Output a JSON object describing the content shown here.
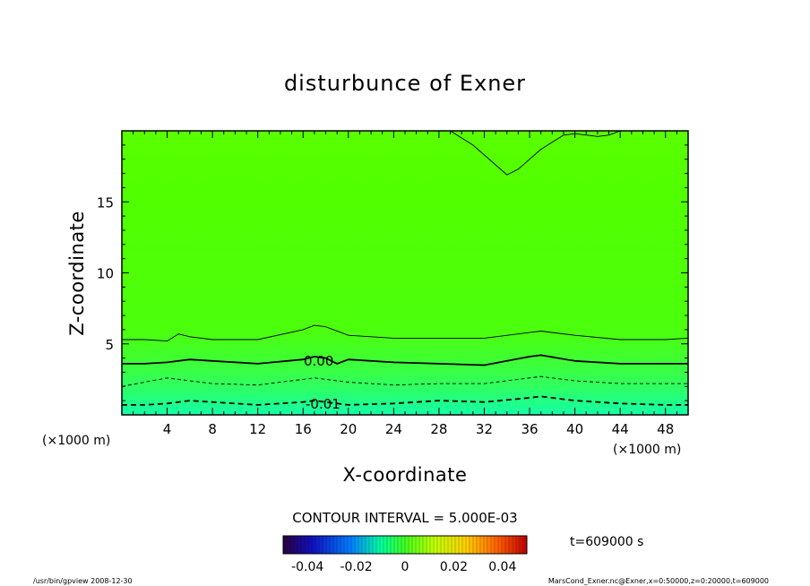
{
  "chart_data": {
    "type": "heatmap",
    "title": "disturbunce of Exner",
    "xlabel": "X-coordinate",
    "ylabel": "Z-coordinate",
    "x_unit": "(×1000 m)",
    "x_unit_right": "(×1000 m)",
    "xlim": [
      0,
      50
    ],
    "ylim": [
      0,
      20
    ],
    "x_ticks": [
      "4",
      "8",
      "12",
      "16",
      "20",
      "24",
      "28",
      "32",
      "36",
      "40",
      "44",
      "48"
    ],
    "y_ticks": [
      "5",
      "10",
      "15"
    ],
    "contour_labels": [
      "0.00",
      "-0.01"
    ],
    "contour_interval_text": "CONTOUR INTERVAL = 5.000E-03",
    "colorbar_ticks": [
      "-0.04",
      "-0.02",
      "0",
      "0.02",
      "0.04"
    ],
    "time_text": "t=609000 s",
    "contours": [
      {
        "level": 0.005,
        "style": "thin-solid",
        "x": [
          0,
          2,
          4,
          5,
          6,
          8,
          12,
          16,
          17,
          18,
          20,
          24,
          28,
          32,
          36,
          37,
          40,
          44,
          48,
          50
        ],
        "y": [
          5.3,
          5.3,
          5.2,
          5.7,
          5.5,
          5.3,
          5.3,
          6.0,
          6.3,
          6.2,
          5.6,
          5.4,
          5.4,
          5.4,
          5.8,
          5.9,
          5.6,
          5.3,
          5.3,
          5.4
        ]
      },
      {
        "level": 0.0,
        "style": "bold-solid",
        "x": [
          0,
          2,
          4,
          6,
          8,
          12,
          16,
          17,
          18,
          19,
          20,
          24,
          28,
          32,
          36,
          37,
          40,
          44,
          48,
          50
        ],
        "y": [
          3.6,
          3.6,
          3.7,
          3.9,
          3.8,
          3.6,
          3.9,
          4.1,
          4.0,
          3.6,
          3.9,
          3.7,
          3.6,
          3.5,
          4.1,
          4.2,
          3.8,
          3.6,
          3.6,
          3.6
        ]
      },
      {
        "level": -0.005,
        "style": "thin-dashed",
        "x": [
          0,
          2,
          4,
          6,
          8,
          12,
          16,
          17,
          18,
          20,
          24,
          28,
          32,
          36,
          37,
          40,
          44,
          48,
          50
        ],
        "y": [
          2.0,
          2.3,
          2.6,
          2.4,
          2.2,
          2.1,
          2.5,
          2.6,
          2.5,
          2.3,
          2.1,
          2.2,
          2.2,
          2.6,
          2.7,
          2.4,
          2.2,
          2.2,
          2.2
        ]
      },
      {
        "level": -0.01,
        "style": "bold-dashed",
        "x": [
          0,
          2,
          4,
          6,
          8,
          12,
          16,
          17,
          18,
          20,
          24,
          28,
          32,
          36,
          37,
          40,
          44,
          48,
          50
        ],
        "y": [
          0.7,
          0.7,
          0.8,
          1.0,
          0.9,
          0.7,
          0.9,
          1.0,
          0.9,
          0.7,
          0.8,
          1.0,
          0.9,
          1.2,
          1.3,
          1.0,
          0.8,
          0.7,
          0.7
        ]
      },
      {
        "level": 0.005,
        "style": "thin-solid",
        "x": [
          29,
          31,
          33,
          34,
          35,
          37,
          39,
          40
        ],
        "y": [
          20,
          19.0,
          17.6,
          16.9,
          17.3,
          18.7,
          19.7,
          19.8
        ]
      },
      {
        "level": 0.005,
        "style": "thin-solid",
        "x": [
          40,
          42,
          43,
          44
        ],
        "y": [
          19.8,
          19.6,
          19.7,
          20
        ]
      }
    ]
  },
  "footer": {
    "left": "/usr/bin/gpview   2008-12-30",
    "right": "MarsCond_Exner.nc@Exner,x=0:50000,z=0:20000,t=609000"
  },
  "colors": {
    "field_top": "#58ff00",
    "field_mid": "#4cff10",
    "field_bottom": "#18ffa0",
    "background": "#ffffff"
  }
}
